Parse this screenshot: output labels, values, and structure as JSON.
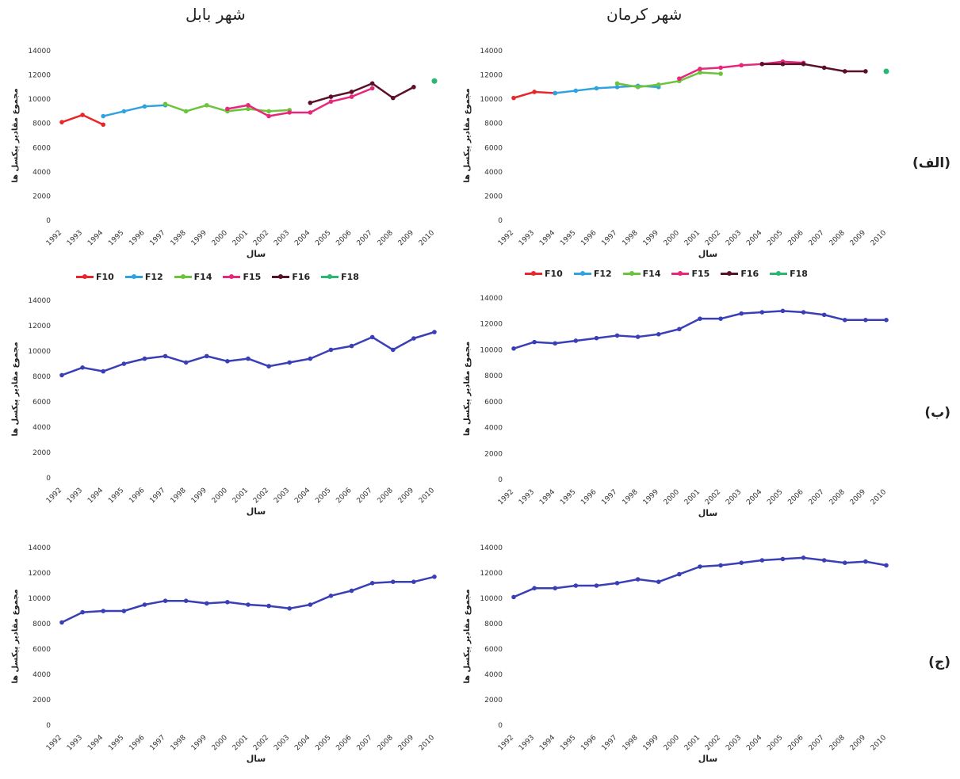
{
  "titles": {
    "right": "شهر کرمان",
    "left": "شهر بابل"
  },
  "row_labels": [
    "(الف)",
    "(ب)",
    "(ج)"
  ],
  "legend": [
    {
      "name": "F10",
      "color": "#e8262c"
    },
    {
      "name": "F12",
      "color": "#2fa3e0"
    },
    {
      "name": "F14",
      "color": "#6cc43c"
    },
    {
      "name": "F15",
      "color": "#e8267a"
    },
    {
      "name": "F16",
      "color": "#5a0f2a"
    },
    {
      "name": "F18",
      "color": "#2bb673"
    }
  ],
  "chart_data": [
    {
      "id": "babol-a",
      "type": "line",
      "xlabel": "سال",
      "ylabel": "مجموع مقادیر پیکسل ها",
      "ylim": [
        0,
        14000
      ],
      "yticks": [
        0,
        2000,
        4000,
        6000,
        8000,
        10000,
        12000,
        14000
      ],
      "x": [
        1992,
        1993,
        1994,
        1995,
        1996,
        1997,
        1998,
        1999,
        2000,
        2001,
        2002,
        2003,
        2004,
        2005,
        2006,
        2007,
        2008,
        2009,
        2010
      ],
      "series": [
        {
          "name": "F10",
          "color": "#e8262c",
          "x": [
            1992,
            1993,
            1994
          ],
          "values": [
            8100,
            8700,
            7900
          ]
        },
        {
          "name": "F12",
          "color": "#2fa3e0",
          "x": [
            1994,
            1995,
            1996,
            1997
          ],
          "values": [
            8600,
            9000,
            9400,
            9500
          ]
        },
        {
          "name": "F14",
          "color": "#6cc43c",
          "x": [
            1997,
            1998,
            1999,
            2000,
            2001,
            2002,
            2003
          ],
          "values": [
            9600,
            9000,
            9500,
            9000,
            9200,
            9000,
            9100
          ]
        },
        {
          "name": "F15",
          "color": "#e8267a",
          "x": [
            2000,
            2001,
            2002,
            2003,
            2004,
            2005,
            2006,
            2007
          ],
          "values": [
            9200,
            9500,
            8600,
            8900,
            8900,
            9800,
            10200,
            10900
          ]
        },
        {
          "name": "F16",
          "color": "#5a0f2a",
          "x": [
            2004,
            2005,
            2006,
            2007,
            2008,
            2009
          ],
          "values": [
            9700,
            10200,
            10600,
            11300,
            10100,
            11000
          ]
        },
        {
          "name": "F18",
          "color": "#2bb673",
          "x": [
            2010
          ],
          "values": [
            11500
          ]
        }
      ]
    },
    {
      "id": "kerman-a",
      "type": "line",
      "xlabel": "سال",
      "ylabel": "مجموع مقادیر پیکسل ها",
      "ylim": [
        0,
        14000
      ],
      "yticks": [
        0,
        2000,
        4000,
        6000,
        8000,
        10000,
        12000,
        14000
      ],
      "x": [
        1992,
        1993,
        1994,
        1995,
        1996,
        1997,
        1998,
        1999,
        2000,
        2001,
        2002,
        2003,
        2004,
        2005,
        2006,
        2007,
        2008,
        2009,
        2010
      ],
      "series": [
        {
          "name": "F10",
          "color": "#e8262c",
          "x": [
            1992,
            1993,
            1994
          ],
          "values": [
            10100,
            10600,
            10500
          ]
        },
        {
          "name": "F12",
          "color": "#2fa3e0",
          "x": [
            1994,
            1995,
            1996,
            1997,
            1998,
            1999
          ],
          "values": [
            10500,
            10700,
            10900,
            11000,
            11100,
            11000
          ]
        },
        {
          "name": "F14",
          "color": "#6cc43c",
          "x": [
            1997,
            1998,
            1999,
            2000,
            2001,
            2002
          ],
          "values": [
            11300,
            11000,
            11200,
            11500,
            12200,
            12100
          ]
        },
        {
          "name": "F15",
          "color": "#e8267a",
          "x": [
            2000,
            2001,
            2002,
            2003,
            2004,
            2005,
            2006
          ],
          "values": [
            11700,
            12500,
            12600,
            12800,
            12900,
            13100,
            13000
          ]
        },
        {
          "name": "F16",
          "color": "#5a0f2a",
          "x": [
            2004,
            2005,
            2006,
            2007,
            2008,
            2009
          ],
          "values": [
            12900,
            12900,
            12900,
            12600,
            12300,
            12300
          ]
        },
        {
          "name": "F18",
          "color": "#2bb673",
          "x": [
            2010
          ],
          "values": [
            12300
          ]
        }
      ]
    },
    {
      "id": "babol-b",
      "type": "line",
      "xlabel": "سال",
      "ylabel": "مجموع مقادیر پیکسل ها",
      "ylim": [
        0,
        14000
      ],
      "yticks": [
        0,
        2000,
        4000,
        6000,
        8000,
        10000,
        12000,
        14000
      ],
      "x": [
        1992,
        1993,
        1994,
        1995,
        1996,
        1997,
        1998,
        1999,
        2000,
        2001,
        2002,
        2003,
        2004,
        2005,
        2006,
        2007,
        2008,
        2009,
        2010
      ],
      "series": [
        {
          "color": "#3b3fb6",
          "values": [
            8100,
            8700,
            8400,
            9000,
            9400,
            9600,
            9100,
            9600,
            9200,
            9400,
            8800,
            9100,
            9400,
            10100,
            10400,
            11100,
            10100,
            11000,
            11500
          ]
        }
      ]
    },
    {
      "id": "kerman-b",
      "type": "line",
      "xlabel": "سال",
      "ylabel": "مجموع مقادیر پیکسل ها",
      "ylim": [
        0,
        14000
      ],
      "yticks": [
        0,
        2000,
        4000,
        6000,
        8000,
        10000,
        12000,
        14000
      ],
      "x": [
        1992,
        1993,
        1994,
        1995,
        1996,
        1997,
        1998,
        1999,
        2000,
        2001,
        2002,
        2003,
        2004,
        2005,
        2006,
        2007,
        2008,
        2009,
        2010
      ],
      "series": [
        {
          "color": "#3b3fb6",
          "values": [
            10100,
            10600,
            10500,
            10700,
            10900,
            11100,
            11000,
            11200,
            11600,
            12400,
            12400,
            12800,
            12900,
            13000,
            12900,
            12700,
            12300,
            12300,
            12300
          ]
        }
      ]
    },
    {
      "id": "babol-c",
      "type": "line",
      "xlabel": "سال",
      "ylabel": "مجموع مقادیر پیکسل ها",
      "ylim": [
        0,
        14000
      ],
      "yticks": [
        0,
        2000,
        4000,
        6000,
        8000,
        10000,
        12000,
        14000
      ],
      "x": [
        1992,
        1993,
        1994,
        1995,
        1996,
        1997,
        1998,
        1999,
        2000,
        2001,
        2002,
        2003,
        2004,
        2005,
        2006,
        2007,
        2008,
        2009,
        2010
      ],
      "series": [
        {
          "color": "#3b3fb6",
          "values": [
            8100,
            8900,
            9000,
            9000,
            9500,
            9800,
            9800,
            9600,
            9700,
            9500,
            9400,
            9200,
            9500,
            10200,
            10600,
            11200,
            11300,
            11300,
            11700
          ]
        }
      ]
    },
    {
      "id": "kerman-c",
      "type": "line",
      "xlabel": "سال",
      "ylabel": "مجموع مقادیر پیکسل ها",
      "ylim": [
        0,
        14000
      ],
      "yticks": [
        0,
        2000,
        4000,
        6000,
        8000,
        10000,
        12000,
        14000
      ],
      "x": [
        1992,
        1993,
        1994,
        1995,
        1996,
        1997,
        1998,
        1999,
        2000,
        2001,
        2002,
        2003,
        2004,
        2005,
        2006,
        2007,
        2008,
        2009,
        2010
      ],
      "series": [
        {
          "color": "#3b3fb6",
          "values": [
            10100,
            10800,
            10800,
            11000,
            11000,
            11200,
            11500,
            11300,
            11900,
            12500,
            12600,
            12800,
            13000,
            13100,
            13200,
            13000,
            12800,
            12900,
            12600
          ]
        }
      ]
    }
  ]
}
